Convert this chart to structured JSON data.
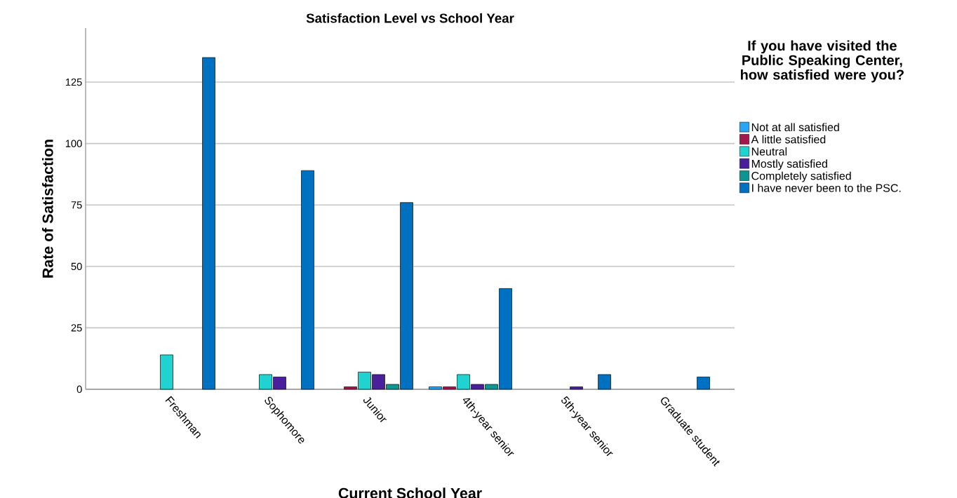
{
  "chart_data": {
    "type": "bar",
    "title": "Satisfaction Level vs School Year",
    "xlabel": "Current School Year",
    "ylabel": "Rate of Satisfaction",
    "legend_title": "If you have visited the Public Speaking Center, how satisfied were you?",
    "categories": [
      "Freshman",
      "Sophomore",
      "Junior",
      "4th-year senior",
      "5th-year senior",
      "Graduate student"
    ],
    "series": [
      {
        "name": "Not at all satisfied",
        "color": "#2aa4f4",
        "values": [
          null,
          null,
          null,
          1,
          null,
          null
        ]
      },
      {
        "name": "A little satisfied",
        "color": "#a3174f",
        "values": [
          null,
          null,
          1,
          1,
          null,
          null
        ]
      },
      {
        "name": "Neutral",
        "color": "#20d3d0",
        "values": [
          14,
          6,
          7,
          6,
          null,
          null
        ]
      },
      {
        "name": "Mostly satisfied",
        "color": "#4a1f9c",
        "values": [
          null,
          5,
          6,
          2,
          1,
          null
        ]
      },
      {
        "name": "Completely satisfied",
        "color": "#0f9591",
        "values": [
          null,
          null,
          2,
          2,
          null,
          null
        ]
      },
      {
        "name": "I have never been to the PSC.",
        "color": "#0070c0",
        "values": [
          135,
          89,
          76,
          41,
          6,
          5
        ]
      }
    ],
    "ylim": [
      0,
      147
    ],
    "yticks": [
      0,
      25,
      50,
      75,
      100,
      125
    ],
    "grid": "y",
    "legend": "right"
  }
}
